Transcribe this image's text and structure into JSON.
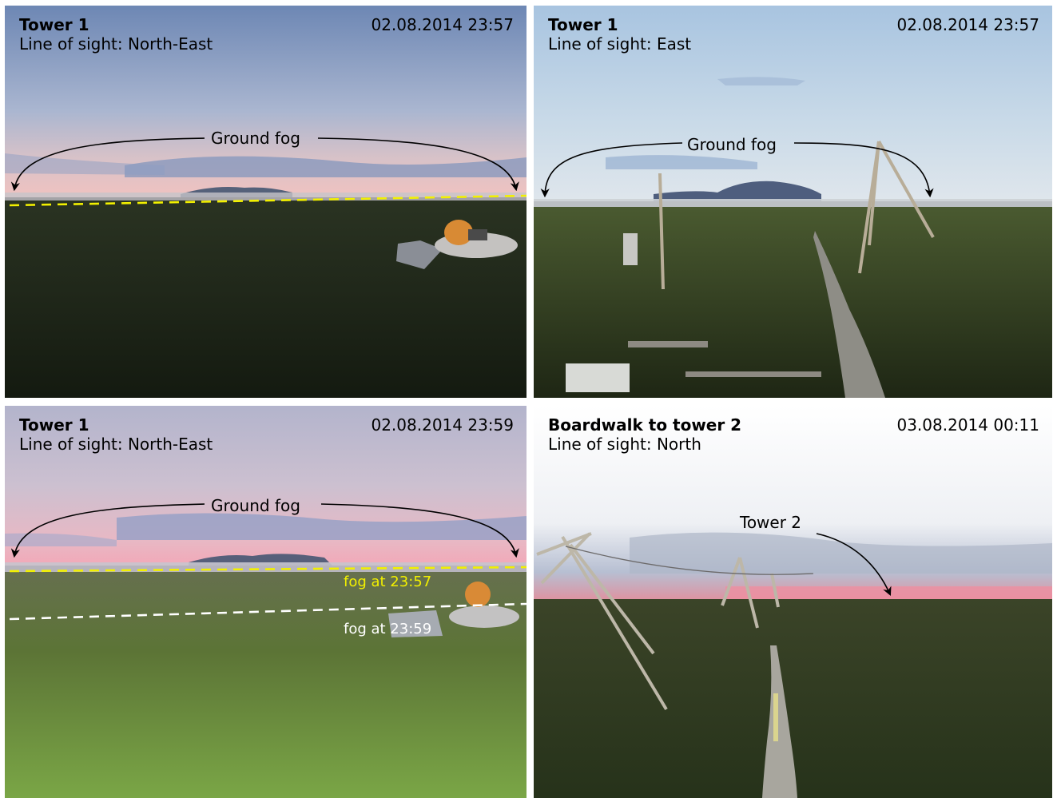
{
  "panels": [
    {
      "title": "Tower 1",
      "sight": "Line of sight: North-East",
      "timestamp": "02.08.2014 23:57",
      "annotation": "Ground fog"
    },
    {
      "title": "Tower 1",
      "sight": "Line of sight: East",
      "timestamp": "02.08.2014 23:57",
      "annotation": "Ground fog"
    },
    {
      "title": "Tower 1",
      "sight": "Line of sight: North-East",
      "timestamp": "02.08.2014 23:59",
      "annotation": "Ground fog",
      "fog_labels": [
        "fog at 23:57",
        "fog at 23:59"
      ]
    },
    {
      "title": "Boardwalk to tower 2",
      "sight": "Line of sight: North",
      "timestamp": "03.08.2014 00:11",
      "annotation": "Tower 2"
    }
  ],
  "colors": {
    "fog_line_yellow": "#f2f000",
    "fog_line_white": "#ffffff",
    "arrow": "#000000"
  }
}
